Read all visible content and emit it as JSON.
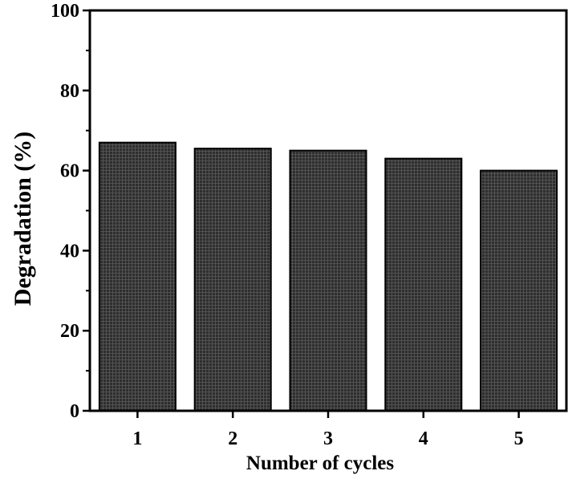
{
  "chart_data": {
    "type": "bar",
    "categories": [
      "1",
      "2",
      "3",
      "4",
      "5"
    ],
    "values": [
      67,
      65.5,
      65,
      63,
      60
    ],
    "title": "",
    "xlabel": "Number of cycles",
    "ylabel": "Degradation (%)",
    "ylim": [
      0,
      100
    ],
    "yticks": [
      "0",
      "20",
      "40",
      "60",
      "80",
      "100"
    ],
    "grid": false,
    "legend": "none",
    "bar_color": "#2a2a2a",
    "bar_pattern": "crosshatch-grid"
  }
}
